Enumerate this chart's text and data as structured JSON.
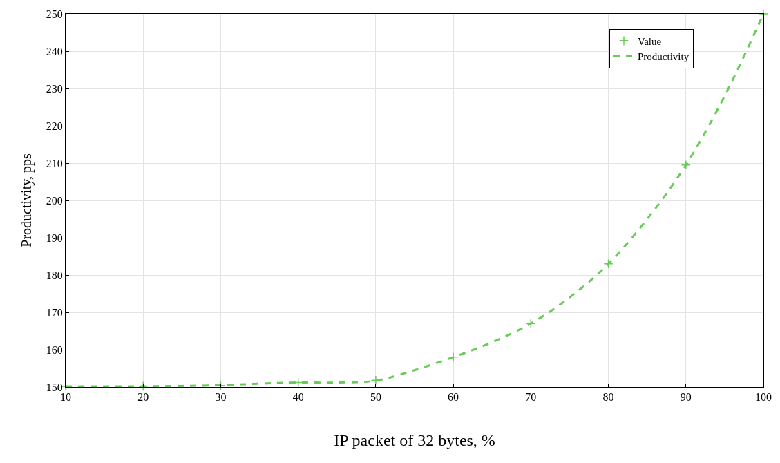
{
  "chart_data": {
    "type": "line",
    "xlabel": "IP packet of 32 bytes, %",
    "ylabel": "Productivity, pps",
    "xlim": [
      10,
      100
    ],
    "ylim": [
      150,
      250
    ],
    "xticks": [
      10,
      20,
      30,
      40,
      50,
      60,
      70,
      80,
      90,
      100
    ],
    "yticks": [
      150,
      160,
      170,
      180,
      190,
      200,
      210,
      220,
      230,
      240,
      250
    ],
    "grid": true,
    "legend": "top right",
    "series": [
      {
        "name": "Value",
        "type": "scatter",
        "marker": "cross",
        "color": "#66cc55",
        "x": [
          10,
          20,
          30,
          40,
          50,
          60,
          70,
          80,
          90,
          100
        ],
        "values": [
          150.2,
          150.2,
          150.4,
          151.2,
          151.8,
          158,
          167,
          183,
          209.5,
          250
        ]
      },
      {
        "name": "Productivity",
        "line_style": "dashed",
        "marker": "none",
        "color": "#66cc55",
        "x": [
          10,
          15,
          20,
          25,
          30,
          35,
          40,
          45,
          50,
          55,
          60,
          65,
          70,
          75,
          80,
          85,
          90,
          95,
          100
        ],
        "values": [
          150.2,
          150.2,
          150.2,
          150.3,
          150.5,
          150.9,
          151.2,
          151.2,
          151.7,
          154.5,
          158,
          162,
          167,
          174,
          183,
          195,
          209.5,
          228,
          250
        ]
      }
    ]
  }
}
